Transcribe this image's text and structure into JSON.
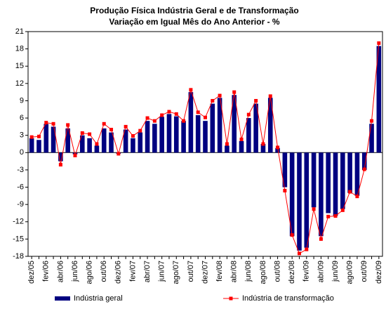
{
  "chart_data": {
    "type": "bar",
    "title": "Produção Física Indústria Geral e de Transformação",
    "subtitle": "Variação em Igual Mês do Ano Anterior - %",
    "categories": [
      "dez/05",
      null,
      "fev/06",
      null,
      "abr/06",
      null,
      "jun/06",
      null,
      "ago/06",
      null,
      "out/06",
      null,
      "dez/06",
      null,
      "fev/07",
      null,
      "abr/07",
      null,
      "jun/07",
      null,
      "ago/07",
      null,
      "out/07",
      null,
      "dez/07",
      null,
      "fev/08",
      null,
      "abr/08",
      null,
      "jun/08",
      null,
      "ago/08",
      null,
      "out/08",
      null,
      "dez/08",
      null,
      "fev/09",
      null,
      "abr/09",
      null,
      "jun/09",
      null,
      "ago/09",
      null,
      "out/09",
      null,
      "dez/09"
    ],
    "series": [
      {
        "name": "Indústria geral",
        "type": "bar",
        "color": "#000080",
        "values": [
          2.5,
          2.2,
          5.0,
          4.5,
          -1.5,
          4.2,
          -0.3,
          3.0,
          2.5,
          1.2,
          4.2,
          3.5,
          -0.2,
          4.0,
          2.5,
          3.5,
          5.5,
          5.0,
          6.2,
          6.7,
          6.3,
          5.5,
          10.5,
          6.5,
          5.5,
          8.5,
          9.5,
          1.2,
          10.0,
          2.0,
          6.0,
          8.5,
          1.5,
          9.5,
          0.8,
          -6.0,
          -14.5,
          -17.0,
          -16.5,
          -9.5,
          -14.5,
          -10.5,
          -11.0,
          -9.8,
          -7.0,
          -7.5,
          -3.0,
          5.0,
          18.5
        ]
      },
      {
        "name": "Indústria de transformação",
        "type": "line",
        "color": "#ff0000",
        "values": [
          2.7,
          2.8,
          5.2,
          5.0,
          -2.1,
          4.8,
          -0.5,
          3.4,
          3.2,
          1.5,
          5.0,
          4.0,
          -0.2,
          4.5,
          2.9,
          3.8,
          6.0,
          5.5,
          6.5,
          7.1,
          6.7,
          5.5,
          10.9,
          7.0,
          6.1,
          9.0,
          9.9,
          1.5,
          10.5,
          2.3,
          6.6,
          9.0,
          1.5,
          9.8,
          0.9,
          -6.6,
          -14.3,
          -17.5,
          -16.8,
          -9.8,
          -15.0,
          -11.1,
          -11.0,
          -10.0,
          -6.8,
          -7.6,
          -2.9,
          5.5,
          19.0
        ]
      }
    ],
    "ylim": [
      -18,
      21
    ],
    "yticks": [
      -18,
      -15,
      -12,
      -9,
      -6,
      -3,
      0,
      3,
      6,
      9,
      12,
      15,
      18,
      21
    ],
    "legend": "bottom"
  }
}
